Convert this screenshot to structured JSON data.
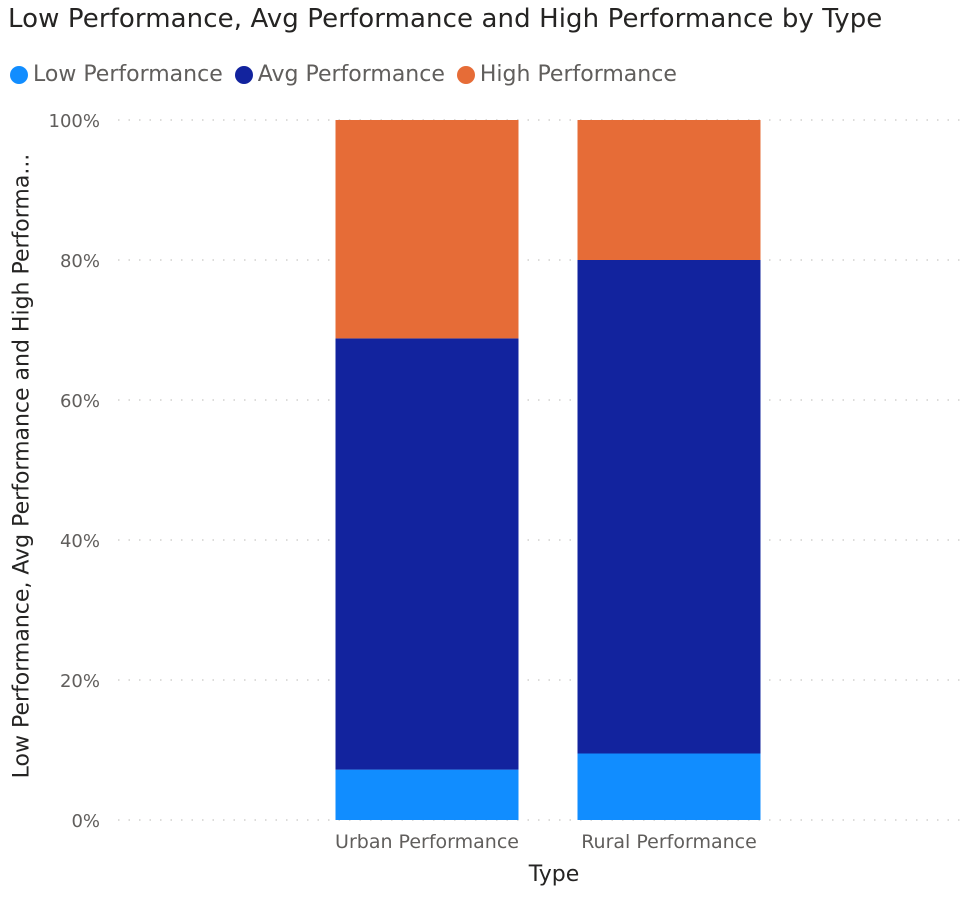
{
  "chart_data": {
    "type": "bar",
    "stacked": "100%",
    "title": "Low Performance, Avg Performance and High Performance by Type",
    "xlabel": "Type",
    "ylabel": "Low Performance, Avg Performance and High Performa...",
    "categories": [
      "Urban Performance",
      "Rural Performance"
    ],
    "series": [
      {
        "name": "Low Performance",
        "color": "#118DFF",
        "values": [
          7.2,
          9.5
        ]
      },
      {
        "name": "Avg Performance",
        "color": "#12239E",
        "values": [
          61.6,
          70.5
        ]
      },
      {
        "name": "High Performance",
        "color": "#E66C37",
        "values": [
          31.2,
          20.0
        ]
      }
    ],
    "yticks": [
      "0%",
      "20%",
      "40%",
      "60%",
      "80%",
      "100%"
    ],
    "ytick_values": [
      0,
      20,
      40,
      60,
      80,
      100
    ],
    "ylim": [
      0,
      100
    ],
    "grid": true,
    "legend": "top-left"
  }
}
